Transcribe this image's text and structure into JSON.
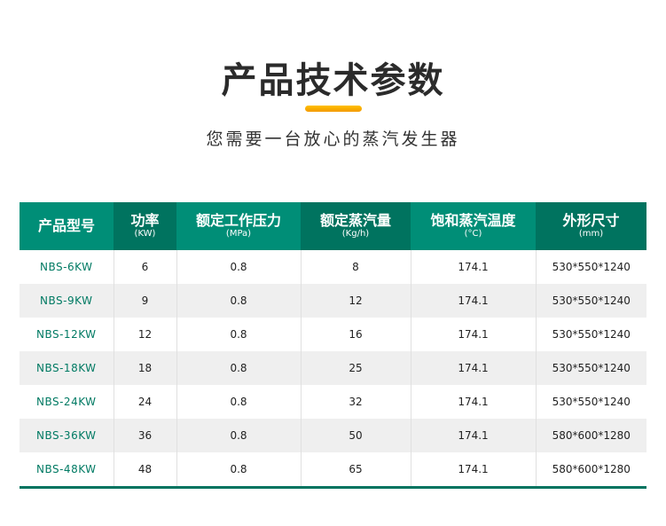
{
  "title": "产品技术参数",
  "subtitle": "您需要一台放心的蒸汽发生器",
  "colors": {
    "header_light": "#008e77",
    "header_dark": "#00735f",
    "accent_bar": "#ffb000"
  },
  "table": {
    "headers": [
      {
        "label": "产品型号",
        "unit": ""
      },
      {
        "label": "功率",
        "unit": "(KW)"
      },
      {
        "label": "额定工作压力",
        "unit": "(MPa)"
      },
      {
        "label": "额定蒸汽量",
        "unit": "(Kg/h)"
      },
      {
        "label": "饱和蒸汽温度",
        "unit": "(°C)"
      },
      {
        "label": "外形尺寸",
        "unit": "(mm)"
      }
    ],
    "rows": [
      [
        "NBS-6KW",
        "6",
        "0.8",
        "8",
        "174.1",
        "530*550*1240"
      ],
      [
        "NBS-9KW",
        "9",
        "0.8",
        "12",
        "174.1",
        "530*550*1240"
      ],
      [
        "NBS-12KW",
        "12",
        "0.8",
        "16",
        "174.1",
        "530*550*1240"
      ],
      [
        "NBS-18KW",
        "18",
        "0.8",
        "25",
        "174.1",
        "530*550*1240"
      ],
      [
        "NBS-24KW",
        "24",
        "0.8",
        "32",
        "174.1",
        "530*550*1240"
      ],
      [
        "NBS-36KW",
        "36",
        "0.8",
        "50",
        "174.1",
        "580*600*1280"
      ],
      [
        "NBS-48KW",
        "48",
        "0.8",
        "65",
        "174.1",
        "580*600*1280"
      ]
    ]
  }
}
